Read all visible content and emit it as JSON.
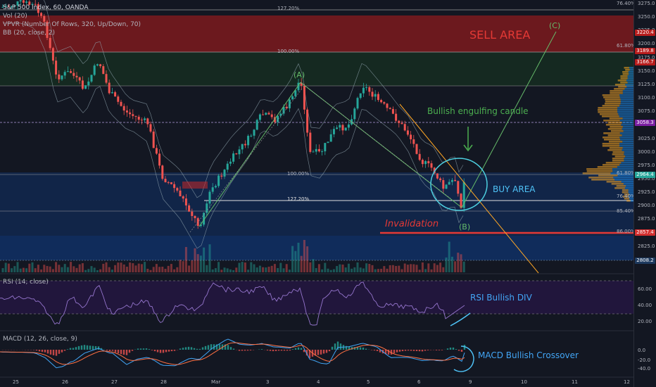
{
  "legend": {
    "symbol": "S&P 500 Index, 60, OANDA",
    "volume": "Vol (20)",
    "vpvr": "VPVR (Number Of Rows, 320, Up/Down, 70)",
    "bb": "BB (20, close, 2)"
  },
  "panes": {
    "rsi_label": "RSI (14, close)",
    "macd_label": "MACD (12, 26, close, 9)"
  },
  "annotations": {
    "sell_area": "SELL AREA",
    "buy_area": "BUY AREA",
    "wave_a": "(A)",
    "wave_b": "(B)",
    "wave_c": "(C)",
    "engulfing": "Bullish engulfing candle",
    "invalidation": "Invalidation",
    "rsi_div": "RSI Bullish DIV",
    "macd_cross": "MACD Bullish Crossover"
  },
  "fib_labels": {
    "top_127": "127.20%",
    "top_100": "100.00%",
    "mid_100": "100.00%",
    "mid_127": "127.20%",
    "r_76a": "76.40%",
    "r_618a": "61.80%",
    "r_618b": "61.80%",
    "r_764b": "76.40%",
    "r_854": "85.40%",
    "r_86": "86.00%"
  },
  "price_axis": {
    "ticks": [
      "3275.0",
      "3250.0",
      "3225.0",
      "3200.0",
      "3175.0",
      "3150.0",
      "3125.0",
      "3100.0",
      "3075.0",
      "3050.0",
      "3025.0",
      "3000.0",
      "2975.0",
      "2950.0",
      "2925.0",
      "2900.0",
      "2875.0",
      "2850.0",
      "2825.0",
      "2800.0"
    ],
    "tags": [
      {
        "text": "3220.4",
        "color": "#b71c1c"
      },
      {
        "text": "3189.8",
        "color": "#b71c1c"
      },
      {
        "text": "3166.7",
        "color": "#b71c1c"
      },
      {
        "text": "3058.3",
        "color": "#7b1fa2"
      },
      {
        "text": "2964.4",
        "color": "#26a69a"
      },
      {
        "text": "2857.4",
        "color": "#d32f2f"
      },
      {
        "text": "2808.2",
        "color": "#1e3a5f"
      }
    ]
  },
  "rsi_axis": [
    "60.00",
    "40.00",
    "20.00"
  ],
  "macd_axis": [
    "0.0",
    "-20.0",
    "-40.0"
  ],
  "time_axis": [
    "25",
    "26",
    "27",
    "28",
    "Mar",
    "3",
    "4",
    "5",
    "6",
    "9",
    "10",
    "11",
    "12"
  ],
  "colors": {
    "up": "#26a69a",
    "down": "#ef5350",
    "sell_zone": "#b71c1c",
    "buy_zone": "#1565c0",
    "annotation_green": "#4caf50",
    "annotation_blue": "#42a5f5",
    "invalidation": "#e53935"
  }
}
